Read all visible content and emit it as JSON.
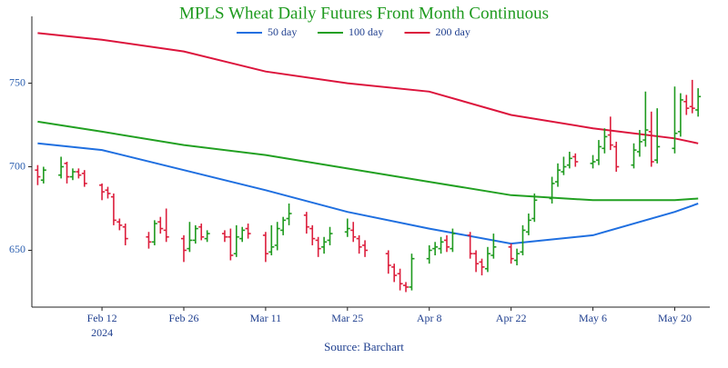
{
  "chart_data": {
    "type": "ohlc",
    "title": "MPLS Wheat Daily Futures Front Month Continuous",
    "title_color": "#1e9a1e",
    "source": "Source: Barchart",
    "x": [
      "2024-02-01",
      "2024-02-02",
      "2024-02-05",
      "2024-02-06",
      "2024-02-07",
      "2024-02-08",
      "2024-02-09",
      "2024-02-12",
      "2024-02-13",
      "2024-02-14",
      "2024-02-15",
      "2024-02-16",
      "2024-02-20",
      "2024-02-21",
      "2024-02-22",
      "2024-02-23",
      "2024-02-26",
      "2024-02-27",
      "2024-02-28",
      "2024-02-29",
      "2024-03-01",
      "2024-03-04",
      "2024-03-05",
      "2024-03-06",
      "2024-03-07",
      "2024-03-08",
      "2024-03-11",
      "2024-03-12",
      "2024-03-13",
      "2024-03-14",
      "2024-03-15",
      "2024-03-18",
      "2024-03-19",
      "2024-03-20",
      "2024-03-21",
      "2024-03-22",
      "2024-03-25",
      "2024-03-26",
      "2024-03-27",
      "2024-03-28",
      "2024-04-01",
      "2024-04-02",
      "2024-04-03",
      "2024-04-04",
      "2024-04-05",
      "2024-04-08",
      "2024-04-09",
      "2024-04-10",
      "2024-04-11",
      "2024-04-12",
      "2024-04-15",
      "2024-04-16",
      "2024-04-17",
      "2024-04-18",
      "2024-04-19",
      "2024-04-22",
      "2024-04-23",
      "2024-04-24",
      "2024-04-25",
      "2024-04-26",
      "2024-04-29",
      "2024-04-30",
      "2024-05-01",
      "2024-05-02",
      "2024-05-03",
      "2024-05-06",
      "2024-05-07",
      "2024-05-08",
      "2024-05-09",
      "2024-05-10",
      "2024-05-13",
      "2024-05-14",
      "2024-05-15",
      "2024-05-16",
      "2024-05-17",
      "2024-05-20",
      "2024-05-21",
      "2024-05-22",
      "2024-05-23",
      "2024-05-24"
    ],
    "open": [
      698,
      692,
      695,
      702,
      694,
      697,
      696,
      689,
      686,
      682,
      667,
      664,
      658,
      655,
      667,
      662,
      657,
      651,
      656,
      664,
      657,
      660,
      658,
      648,
      657,
      663,
      659,
      649,
      653,
      662,
      669,
      671,
      663,
      656,
      652,
      656,
      661,
      662,
      657,
      653,
      648,
      640,
      636,
      629,
      628,
      645,
      651,
      651,
      656,
      651,
      659,
      648,
      643,
      639,
      647,
      652,
      644,
      649,
      661,
      669,
      681,
      691,
      697,
      701,
      706,
      702,
      704,
      711,
      719,
      712,
      701,
      709,
      716,
      721,
      704,
      711,
      721,
      739,
      736,
      734
    ],
    "high": [
      701,
      700,
      706,
      703,
      699,
      699,
      698,
      690,
      688,
      684,
      669,
      666,
      661,
      668,
      670,
      675,
      659,
      667,
      665,
      666,
      662,
      662,
      663,
      665,
      664,
      666,
      661,
      665,
      667,
      670,
      678,
      673,
      665,
      658,
      658,
      664,
      669,
      667,
      659,
      656,
      650,
      642,
      639,
      631,
      648,
      653,
      655,
      658,
      659,
      663,
      661,
      650,
      645,
      652,
      660,
      654,
      651,
      665,
      672,
      684,
      694,
      702,
      706,
      709,
      708,
      707,
      716,
      723,
      730,
      715,
      714,
      722,
      745,
      733,
      735,
      748,
      744,
      743,
      752,
      747
    ],
    "low": [
      689,
      690,
      693,
      690,
      692,
      693,
      688,
      680,
      681,
      665,
      662,
      653,
      651,
      653,
      660,
      655,
      643,
      649,
      654,
      656,
      655,
      655,
      644,
      646,
      655,
      657,
      643,
      647,
      650,
      659,
      665,
      660,
      653,
      646,
      648,
      653,
      658,
      655,
      648,
      646,
      636,
      631,
      626,
      625,
      626,
      642,
      647,
      648,
      649,
      649,
      645,
      637,
      635,
      637,
      645,
      642,
      641,
      647,
      659,
      667,
      678,
      688,
      695,
      699,
      700,
      699,
      701,
      708,
      710,
      697,
      699,
      706,
      712,
      700,
      702,
      708,
      718,
      731,
      732,
      730
    ],
    "close": [
      694,
      698,
      700,
      694,
      697,
      695,
      690,
      685,
      684,
      668,
      665,
      657,
      655,
      666,
      663,
      658,
      650,
      656,
      663,
      658,
      660,
      658,
      647,
      658,
      662,
      660,
      648,
      652,
      663,
      668,
      672,
      664,
      657,
      651,
      655,
      660,
      663,
      658,
      652,
      650,
      641,
      635,
      630,
      628,
      645,
      650,
      652,
      655,
      652,
      660,
      648,
      642,
      640,
      648,
      652,
      645,
      648,
      662,
      668,
      680,
      690,
      698,
      700,
      705,
      703,
      703,
      712,
      718,
      713,
      700,
      710,
      715,
      722,
      703,
      712,
      720,
      740,
      735,
      735,
      742
    ],
    "up_color": "#1e9a1e",
    "down_color": "#dc1e3c",
    "lines": [
      {
        "name": "50 day",
        "color": "#1f6fe0",
        "x": [
          "2024-02-01",
          "2024-02-12",
          "2024-02-26",
          "2024-03-11",
          "2024-03-25",
          "2024-04-08",
          "2024-04-22",
          "2024-05-06",
          "2024-05-20",
          "2024-05-24"
        ],
        "values": [
          714,
          710,
          698,
          686,
          673,
          663,
          654,
          659,
          673,
          678
        ]
      },
      {
        "name": "100 day",
        "color": "#22a022",
        "x": [
          "2024-02-01",
          "2024-02-12",
          "2024-02-26",
          "2024-03-11",
          "2024-03-25",
          "2024-04-08",
          "2024-04-22",
          "2024-05-06",
          "2024-05-20",
          "2024-05-24"
        ],
        "values": [
          727,
          721,
          713,
          707,
          699,
          691,
          683,
          680,
          680,
          681
        ]
      },
      {
        "name": "200 day",
        "color": "#dc143c",
        "x": [
          "2024-02-01",
          "2024-02-12",
          "2024-02-26",
          "2024-03-11",
          "2024-03-25",
          "2024-04-08",
          "2024-04-22",
          "2024-05-06",
          "2024-05-20",
          "2024-05-24"
        ],
        "values": [
          780,
          776,
          769,
          757,
          750,
          745,
          731,
          723,
          717,
          714
        ]
      }
    ],
    "legend": "top",
    "xlim": [
      "2024-01-31",
      "2024-05-26"
    ],
    "xticks": [
      {
        "value": "2024-02-12",
        "label": "Feb 12"
      },
      {
        "value": "2024-02-26",
        "label": "Feb 26"
      },
      {
        "value": "2024-03-11",
        "label": "Mar 11"
      },
      {
        "value": "2024-03-25",
        "label": "Mar 25"
      },
      {
        "value": "2024-04-08",
        "label": "Apr 8"
      },
      {
        "value": "2024-04-22",
        "label": "Apr 22"
      },
      {
        "value": "2024-05-06",
        "label": "May 6"
      },
      {
        "value": "2024-05-20",
        "label": "May 20"
      }
    ],
    "year_label": "2024",
    "ylim": [
      616,
      790
    ],
    "yticks": [
      650,
      700,
      750
    ],
    "grid": false
  }
}
